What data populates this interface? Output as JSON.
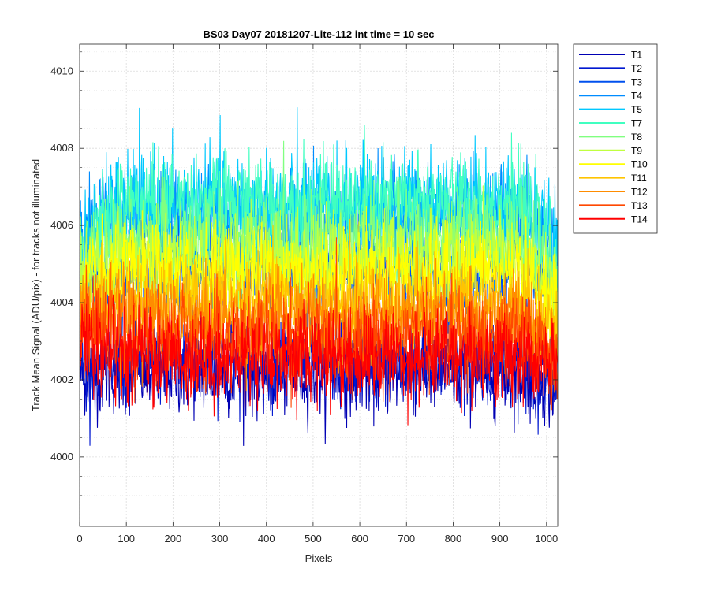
{
  "chart_data": {
    "type": "line",
    "title": "BS03 Day07 20181207-Lite-112 int time = 10 sec",
    "xlabel": "Pixels",
    "ylabel": "Track Mean Signal (ADU/pix) - for tracks not illuminated",
    "xlim": [
      0,
      1024
    ],
    "ylim": [
      3998.2,
      4010.7
    ],
    "x_ticks": [
      "0",
      "100",
      "200",
      "300",
      "400",
      "500",
      "600",
      "700",
      "800",
      "900",
      "1000"
    ],
    "x_tick_values": [
      0,
      100,
      200,
      300,
      400,
      500,
      600,
      700,
      800,
      900,
      1000
    ],
    "y_ticks": [
      "4000",
      "4002",
      "4004",
      "4006",
      "4008",
      "4010"
    ],
    "y_tick_values": [
      4000,
      4002,
      4004,
      4006,
      4008,
      4010
    ],
    "y_minor_tick_values": [
      3998.5,
      3999,
      3999.5,
      4000.5,
      4001,
      4001.5,
      4002.5,
      4003,
      4003.5,
      4004.5,
      4005,
      4005.5,
      4006.5,
      4007,
      4007.5,
      4008.5,
      4009,
      4009.5,
      4010.5
    ],
    "grid": "major and minor (dotted)",
    "legend_position": "outside top-right",
    "x": "pixel index 1 to 1024",
    "series": [
      {
        "name": "T1",
        "color": "#0000b4",
        "values_approx": {
          "left_edge": 4002.2,
          "body_mean": 4002.2,
          "right_edge": 4001.8,
          "noise_amplitude": 1.0
        }
      },
      {
        "name": "T2",
        "color": "#0018d0",
        "values_approx": {
          "left_edge": 4002.5,
          "body_mean": 4002.5,
          "right_edge": 4002.1,
          "noise_amplitude": 1.0
        }
      },
      {
        "name": "T3",
        "color": "#0050ee",
        "values_approx": {
          "left_edge": 4004.5,
          "body_mean": 4004.8,
          "right_edge": 4004.3,
          "noise_amplitude": 1.1
        }
      },
      {
        "name": "T4",
        "color": "#008cff",
        "values_approx": {
          "left_edge": 4005.5,
          "body_mean": 4006.2,
          "right_edge": 4005.3,
          "noise_amplitude": 1.2
        }
      },
      {
        "name": "T5",
        "color": "#00c8ff",
        "values_approx": {
          "left_edge": 4005.3,
          "body_mean": 4006.5,
          "right_edge": 4005.2,
          "noise_amplitude": 1.3
        }
      },
      {
        "name": "T7",
        "color": "#40ffc0",
        "values_approx": {
          "left_edge": 4005.0,
          "body_mean": 4006.6,
          "right_edge": 4005.0,
          "noise_amplitude": 1.1
        }
      },
      {
        "name": "T8",
        "color": "#80ff80",
        "values_approx": {
          "left_edge": 4004.8,
          "body_mean": 4005.6,
          "right_edge": 4004.5,
          "noise_amplitude": 1.1
        }
      },
      {
        "name": "T9",
        "color": "#c0ff40",
        "values_approx": {
          "left_edge": 4004.5,
          "body_mean": 4005.2,
          "right_edge": 4004.2,
          "noise_amplitude": 1.1
        }
      },
      {
        "name": "T10",
        "color": "#ffff00",
        "values_approx": {
          "left_edge": 4004.3,
          "body_mean": 4004.8,
          "right_edge": 4003.9,
          "noise_amplitude": 1.1
        }
      },
      {
        "name": "T11",
        "color": "#ffc400",
        "values_approx": {
          "left_edge": 4003.8,
          "body_mean": 4004.0,
          "right_edge": 4003.3,
          "noise_amplitude": 1.1
        }
      },
      {
        "name": "T12",
        "color": "#ff8c00",
        "values_approx": {
          "left_edge": 4003.6,
          "body_mean": 4003.6,
          "right_edge": 4003.0,
          "noise_amplitude": 1.1
        }
      },
      {
        "name": "T13",
        "color": "#ff4800",
        "values_approx": {
          "left_edge": 4003.2,
          "body_mean": 4003.1,
          "right_edge": 4002.6,
          "noise_amplitude": 1.1
        }
      },
      {
        "name": "T14",
        "color": "#ff0000",
        "values_approx": {
          "left_edge": 4003.0,
          "body_mean": 4002.6,
          "right_edge": 4002.2,
          "noise_amplitude": 1.1
        }
      }
    ]
  }
}
